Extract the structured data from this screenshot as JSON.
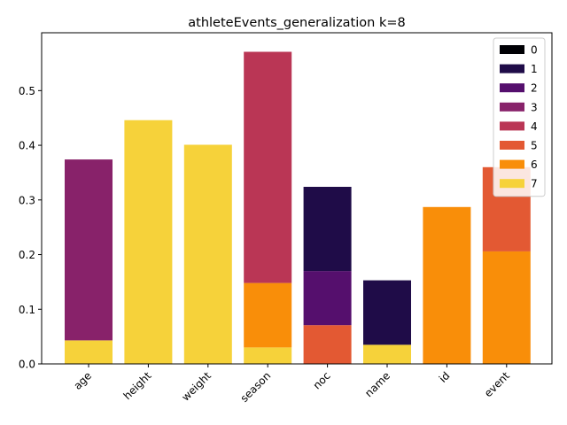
{
  "chart_data": {
    "type": "bar",
    "stacked": true,
    "title": "athleteEvents_generalization k=8",
    "xlabel": "",
    "ylabel": "",
    "categories": [
      "age",
      "height",
      "weight",
      "season",
      "noc",
      "name",
      "id",
      "event"
    ],
    "ylim": [
      0,
      0.6
    ],
    "yticks": [
      "0.0",
      "0.1",
      "0.2",
      "0.3",
      "0.4",
      "0.5"
    ],
    "ytick_values": [
      0,
      0.1,
      0.2,
      0.3,
      0.4,
      0.5
    ],
    "legend_position": "top-right",
    "grid": false,
    "series": [
      {
        "name": "0",
        "color": "#000004",
        "values": [
          0,
          0,
          0,
          0,
          0,
          0,
          0,
          0
        ]
      },
      {
        "name": "1",
        "color": "#1f0c48",
        "values": [
          0,
          0,
          0,
          0,
          0.154,
          0.118,
          0,
          0
        ]
      },
      {
        "name": "2",
        "color": "#550f6d",
        "values": [
          0,
          0,
          0,
          0,
          0.099,
          0,
          0,
          0
        ]
      },
      {
        "name": "3",
        "color": "#88226a",
        "values": [
          0.331,
          0,
          0,
          0,
          0,
          0,
          0,
          0
        ]
      },
      {
        "name": "4",
        "color": "#ba3655",
        "values": [
          0,
          0,
          0,
          0.423,
          0,
          0,
          0,
          0
        ]
      },
      {
        "name": "5",
        "color": "#e35933",
        "values": [
          0,
          0,
          0,
          0,
          0.071,
          0,
          0,
          0.154
        ]
      },
      {
        "name": "6",
        "color": "#f98e09",
        "values": [
          0,
          0,
          0,
          0.118,
          0,
          0,
          0.287,
          0.206
        ]
      },
      {
        "name": "7",
        "color": "#f6d23a",
        "values": [
          0.043,
          0.446,
          0.401,
          0.03,
          0,
          0.035,
          0,
          0
        ]
      }
    ]
  }
}
